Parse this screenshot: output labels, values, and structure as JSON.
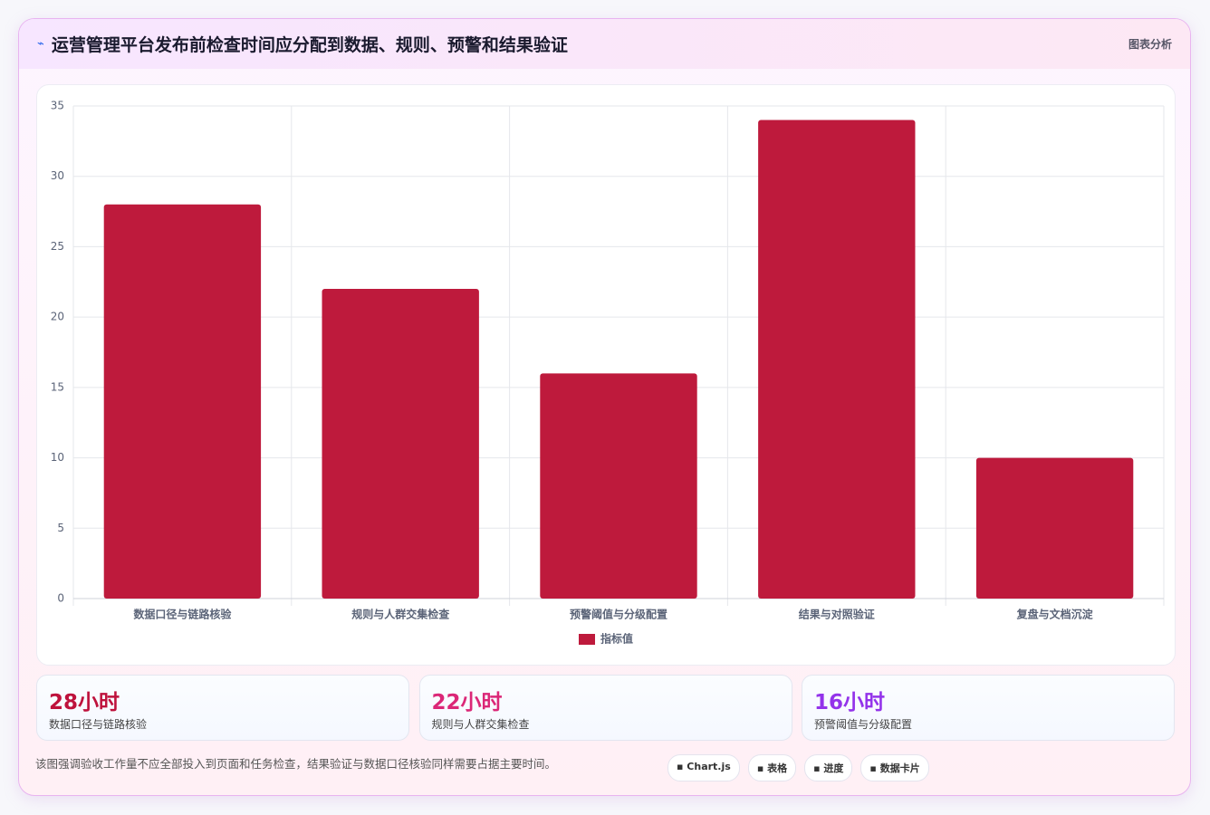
{
  "header": {
    "title": "运营管理平台发布前检查时间应分配到数据、规则、预警和结果验证",
    "badge": "图表分析"
  },
  "chart_data": {
    "type": "bar",
    "categories": [
      "数据口径与链路核验",
      "规则与人群交集检查",
      "预警阈值与分级配置",
      "结果与对照验证",
      "复盘与文档沉淀"
    ],
    "series": [
      {
        "name": "指标值",
        "color": "#be1a3c",
        "values": [
          28,
          22,
          16,
          34,
          10
        ]
      }
    ],
    "ylim": [
      0,
      35
    ],
    "yticks": [
      0,
      5,
      10,
      15,
      20,
      25,
      30,
      35
    ],
    "grid": true
  },
  "cards": [
    {
      "value": "28小时",
      "label": "数据口径与链路核验",
      "color": "#be123c"
    },
    {
      "value": "22小时",
      "label": "规则与人群交集检查",
      "color": "#db2777"
    },
    {
      "value": "16小时",
      "label": "预警阈值与分级配置",
      "color": "#9333ea"
    }
  ],
  "footer": {
    "note": "该图强调验收工作量不应全部投入到页面和任务检查，结果验证与数据口径核验同样需要占据主要时间。",
    "tags": [
      "Chart.js",
      "表格",
      "进度",
      "数据卡片"
    ]
  }
}
